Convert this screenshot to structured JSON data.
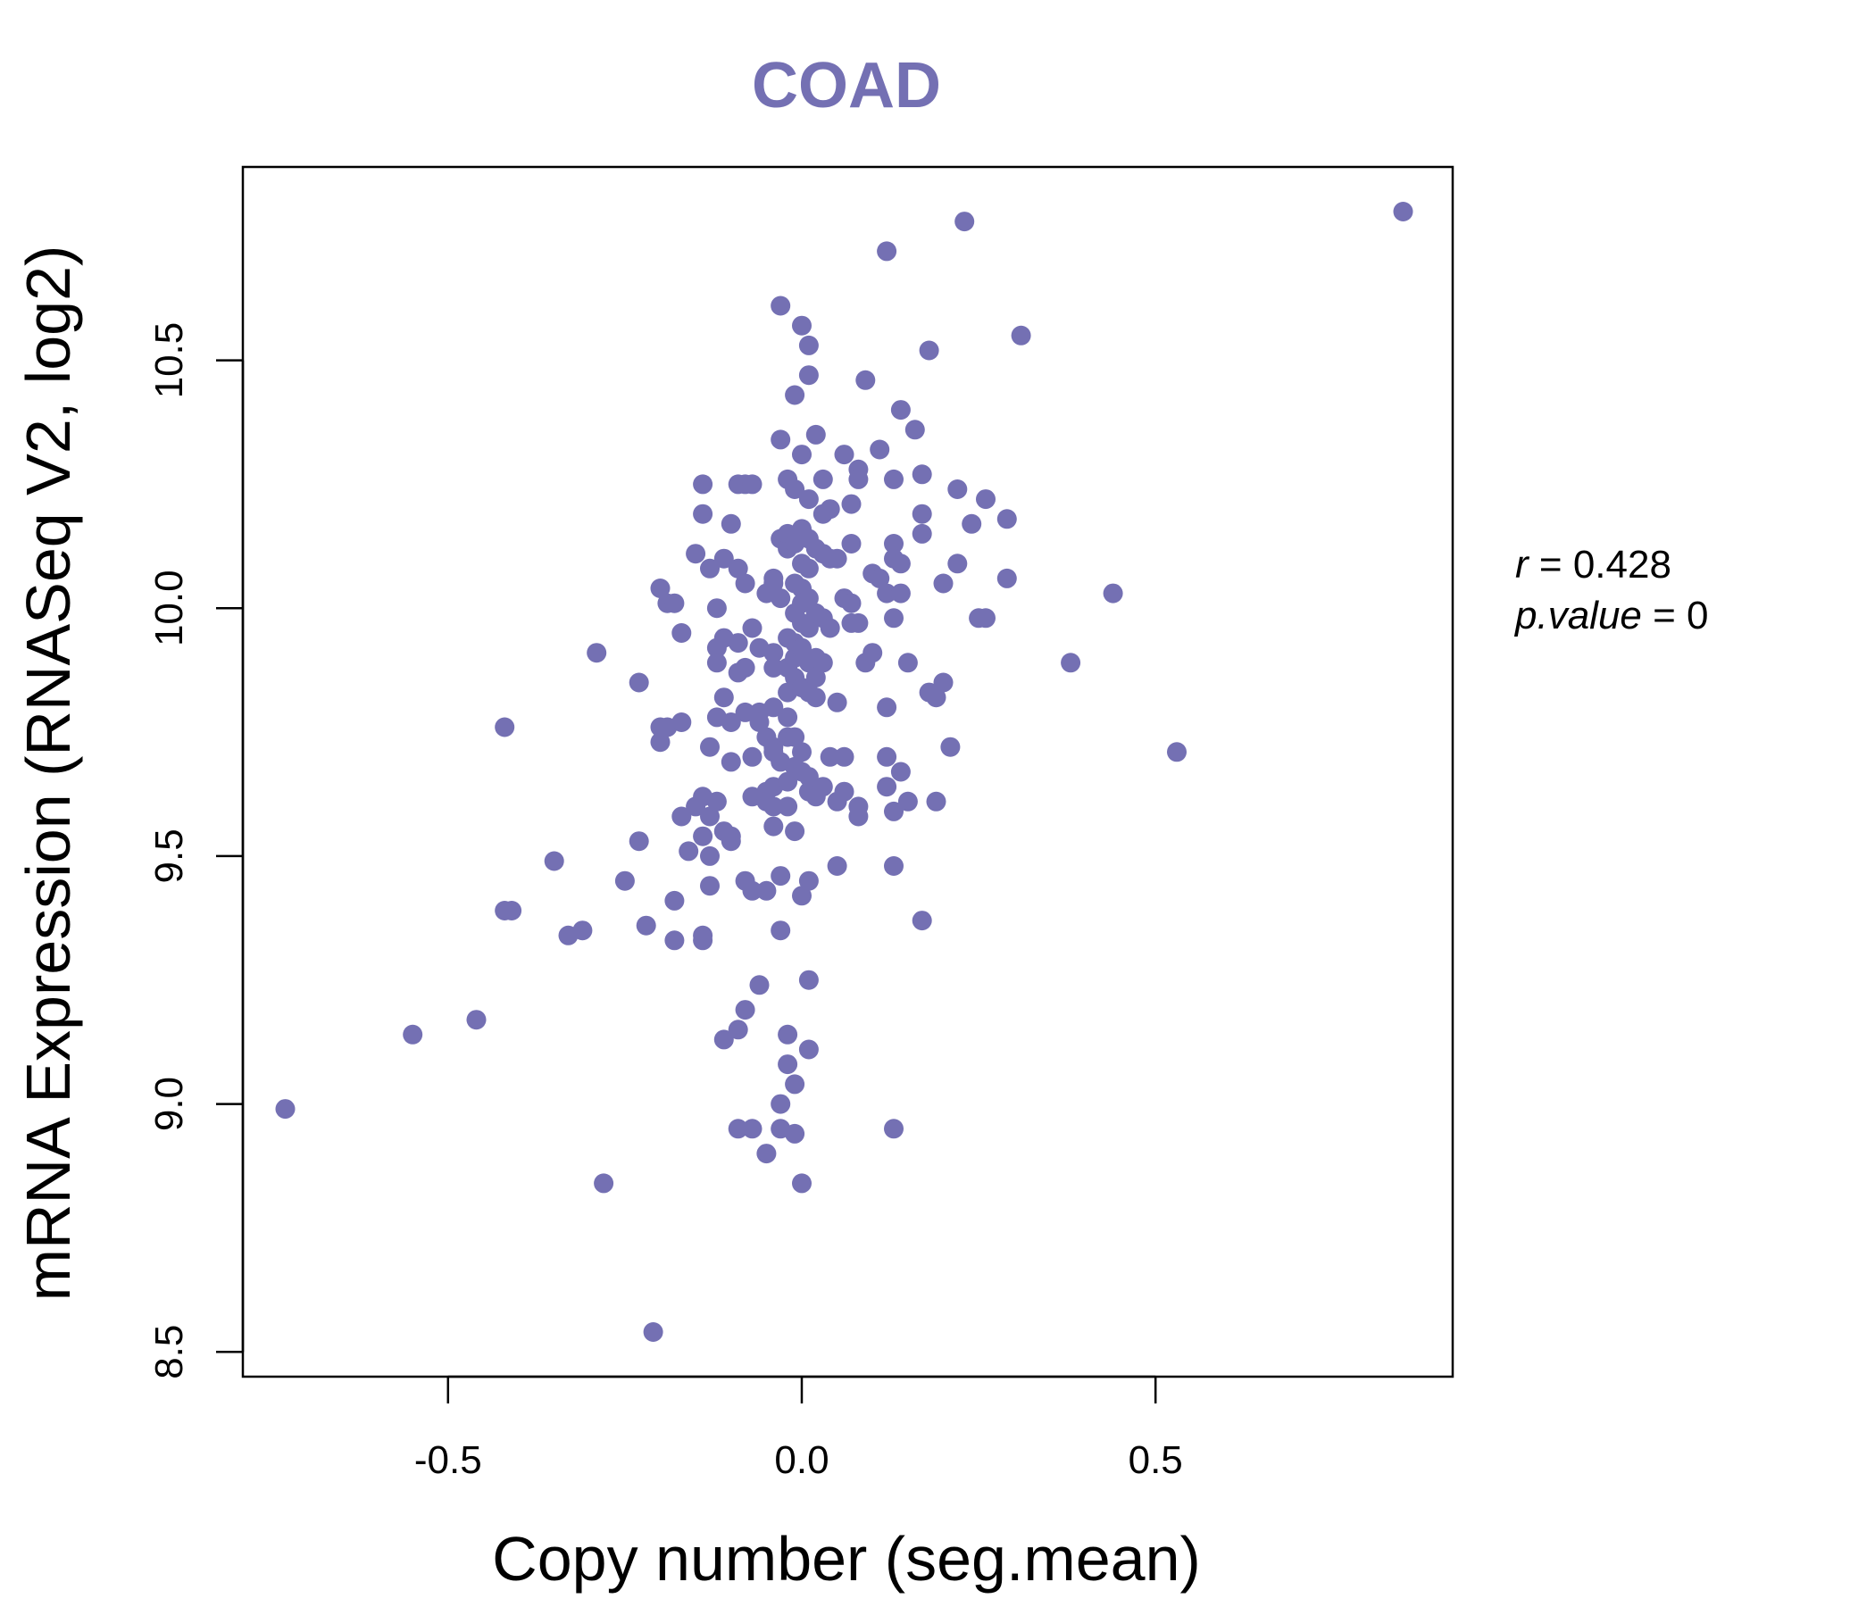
{
  "chart_data": {
    "type": "scatter",
    "title": "COAD",
    "xlabel": "Copy number (seg.mean)",
    "ylabel": "mRNA Expression (RNASeq V2, log2)",
    "xlim": [
      -0.79,
      0.92
    ],
    "ylim": [
      8.45,
      10.89
    ],
    "xticks": [
      -0.5,
      0.0,
      0.5
    ],
    "xtick_labels": [
      "-0.5",
      "0.0",
      "0.5"
    ],
    "yticks": [
      8.5,
      9.0,
      9.5,
      10.0,
      10.5
    ],
    "ytick_labels": [
      "8.5",
      "9.0",
      "9.5",
      "10.0",
      "10.5"
    ],
    "color": "#7470b3",
    "stats": {
      "r_label": "r",
      "r_value": "0.428",
      "p_label": "p.value",
      "p_value": "0"
    },
    "points": [
      [
        -0.73,
        8.99
      ],
      [
        -0.55,
        9.14
      ],
      [
        -0.46,
        9.17
      ],
      [
        -0.42,
        9.76
      ],
      [
        -0.42,
        9.39
      ],
      [
        -0.41,
        9.39
      ],
      [
        -0.35,
        9.49
      ],
      [
        -0.33,
        9.34
      ],
      [
        -0.31,
        9.35
      ],
      [
        -0.29,
        9.91
      ],
      [
        -0.28,
        8.84
      ],
      [
        -0.25,
        9.45
      ],
      [
        -0.23,
        9.53
      ],
      [
        -0.23,
        9.85
      ],
      [
        -0.22,
        9.36
      ],
      [
        -0.21,
        8.54
      ],
      [
        -0.2,
        10.04
      ],
      [
        -0.2,
        9.73
      ],
      [
        -0.2,
        9.76
      ],
      [
        -0.19,
        9.76
      ],
      [
        -0.19,
        10.01
      ],
      [
        -0.18,
        9.41
      ],
      [
        -0.18,
        10.01
      ],
      [
        -0.18,
        9.33
      ],
      [
        -0.17,
        9.77
      ],
      [
        -0.17,
        9.95
      ],
      [
        -0.17,
        9.58
      ],
      [
        -0.16,
        9.51
      ],
      [
        -0.15,
        10.11
      ],
      [
        -0.15,
        9.6
      ],
      [
        -0.14,
        10.25
      ],
      [
        -0.14,
        10.19
      ],
      [
        -0.14,
        9.62
      ],
      [
        -0.14,
        9.34
      ],
      [
        -0.14,
        9.33
      ],
      [
        -0.14,
        9.54
      ],
      [
        -0.13,
        10.08
      ],
      [
        -0.13,
        9.58
      ],
      [
        -0.13,
        9.5
      ],
      [
        -0.13,
        9.72
      ],
      [
        -0.13,
        9.44
      ],
      [
        -0.12,
        9.92
      ],
      [
        -0.12,
        9.89
      ],
      [
        -0.12,
        9.78
      ],
      [
        -0.12,
        10.0
      ],
      [
        -0.12,
        9.61
      ],
      [
        -0.11,
        9.13
      ],
      [
        -0.11,
        10.1
      ],
      [
        -0.11,
        9.82
      ],
      [
        -0.11,
        9.94
      ],
      [
        -0.11,
        9.55
      ],
      [
        -0.1,
        10.17
      ],
      [
        -0.1,
        9.77
      ],
      [
        -0.1,
        9.53
      ],
      [
        -0.1,
        9.54
      ],
      [
        -0.1,
        9.69
      ],
      [
        -0.09,
        10.08
      ],
      [
        -0.09,
        9.93
      ],
      [
        -0.09,
        9.15
      ],
      [
        -0.09,
        8.95
      ],
      [
        -0.09,
        10.25
      ],
      [
        -0.09,
        9.87
      ],
      [
        -0.08,
        9.45
      ],
      [
        -0.08,
        10.25
      ],
      [
        -0.08,
        10.05
      ],
      [
        -0.08,
        9.88
      ],
      [
        -0.08,
        9.79
      ],
      [
        -0.08,
        9.19
      ],
      [
        -0.07,
        10.25
      ],
      [
        -0.07,
        9.96
      ],
      [
        -0.07,
        9.7
      ],
      [
        -0.07,
        8.95
      ],
      [
        -0.07,
        9.43
      ],
      [
        -0.07,
        9.62
      ],
      [
        -0.06,
        9.24
      ],
      [
        -0.06,
        9.79
      ],
      [
        -0.06,
        9.77
      ],
      [
        -0.06,
        9.92
      ],
      [
        -0.05,
        10.03
      ],
      [
        -0.05,
        9.74
      ],
      [
        -0.05,
        9.43
      ],
      [
        -0.05,
        8.9
      ],
      [
        -0.05,
        9.63
      ],
      [
        -0.05,
        9.61
      ],
      [
        -0.04,
        10.05
      ],
      [
        -0.04,
        10.06
      ],
      [
        -0.04,
        9.91
      ],
      [
        -0.04,
        9.88
      ],
      [
        -0.04,
        9.8
      ],
      [
        -0.04,
        9.72
      ],
      [
        -0.04,
        9.71
      ],
      [
        -0.04,
        9.6
      ],
      [
        -0.04,
        9.56
      ],
      [
        -0.04,
        9.64
      ],
      [
        -0.03,
        10.61
      ],
      [
        -0.03,
        10.34
      ],
      [
        -0.03,
        10.14
      ],
      [
        -0.03,
        10.02
      ],
      [
        -0.03,
        9.46
      ],
      [
        -0.03,
        9.35
      ],
      [
        -0.03,
        9.0
      ],
      [
        -0.03,
        8.95
      ],
      [
        -0.03,
        9.69
      ],
      [
        -0.02,
        10.26
      ],
      [
        -0.02,
        10.12
      ],
      [
        -0.02,
        10.15
      ],
      [
        -0.02,
        9.94
      ],
      [
        -0.02,
        9.88
      ],
      [
        -0.02,
        9.83
      ],
      [
        -0.02,
        9.78
      ],
      [
        -0.02,
        9.74
      ],
      [
        -0.02,
        9.6
      ],
      [
        -0.02,
        9.65
      ],
      [
        -0.02,
        9.14
      ],
      [
        -0.02,
        9.08
      ],
      [
        -0.01,
        10.43
      ],
      [
        -0.01,
        10.24
      ],
      [
        -0.01,
        10.13
      ],
      [
        -0.01,
        10.05
      ],
      [
        -0.01,
        9.99
      ],
      [
        -0.01,
        9.93
      ],
      [
        -0.01,
        9.9
      ],
      [
        -0.01,
        9.86
      ],
      [
        -0.01,
        9.74
      ],
      [
        -0.01,
        9.68
      ],
      [
        -0.01,
        9.55
      ],
      [
        -0.01,
        9.04
      ],
      [
        -0.01,
        8.94
      ],
      [
        0.0,
        10.57
      ],
      [
        0.0,
        10.31
      ],
      [
        0.0,
        10.16
      ],
      [
        0.0,
        10.09
      ],
      [
        0.0,
        10.04
      ],
      [
        0.0,
        10.01
      ],
      [
        0.0,
        9.97
      ],
      [
        0.0,
        9.92
      ],
      [
        0.0,
        9.84
      ],
      [
        0.0,
        9.71
      ],
      [
        0.0,
        9.67
      ],
      [
        0.0,
        9.42
      ],
      [
        0.0,
        8.84
      ],
      [
        0.01,
        10.53
      ],
      [
        0.01,
        10.47
      ],
      [
        0.01,
        10.22
      ],
      [
        0.01,
        10.14
      ],
      [
        0.01,
        10.08
      ],
      [
        0.01,
        10.02
      ],
      [
        0.01,
        9.96
      ],
      [
        0.01,
        9.89
      ],
      [
        0.01,
        9.83
      ],
      [
        0.01,
        9.66
      ],
      [
        0.01,
        9.63
      ],
      [
        0.01,
        9.45
      ],
      [
        0.01,
        9.25
      ],
      [
        0.01,
        9.11
      ],
      [
        0.02,
        10.35
      ],
      [
        0.02,
        10.12
      ],
      [
        0.02,
        9.99
      ],
      [
        0.02,
        9.9
      ],
      [
        0.02,
        9.86
      ],
      [
        0.02,
        9.82
      ],
      [
        0.02,
        9.62
      ],
      [
        0.03,
        10.26
      ],
      [
        0.03,
        10.19
      ],
      [
        0.03,
        10.11
      ],
      [
        0.03,
        9.98
      ],
      [
        0.03,
        9.89
      ],
      [
        0.03,
        9.64
      ],
      [
        0.04,
        10.2
      ],
      [
        0.04,
        10.1
      ],
      [
        0.04,
        9.96
      ],
      [
        0.04,
        9.7
      ],
      [
        0.05,
        10.1
      ],
      [
        0.05,
        9.81
      ],
      [
        0.05,
        9.48
      ],
      [
        0.05,
        9.61
      ],
      [
        0.06,
        10.31
      ],
      [
        0.06,
        10.02
      ],
      [
        0.06,
        9.7
      ],
      [
        0.06,
        9.63
      ],
      [
        0.07,
        10.21
      ],
      [
        0.07,
        10.13
      ],
      [
        0.07,
        10.01
      ],
      [
        0.07,
        9.97
      ],
      [
        0.08,
        10.28
      ],
      [
        0.08,
        10.26
      ],
      [
        0.08,
        9.97
      ],
      [
        0.08,
        9.58
      ],
      [
        0.08,
        9.6
      ],
      [
        0.09,
        10.46
      ],
      [
        0.09,
        9.89
      ],
      [
        0.1,
        10.07
      ],
      [
        0.1,
        9.91
      ],
      [
        0.11,
        10.32
      ],
      [
        0.11,
        10.06
      ],
      [
        0.12,
        10.03
      ],
      [
        0.12,
        10.72
      ],
      [
        0.12,
        9.8
      ],
      [
        0.12,
        9.7
      ],
      [
        0.12,
        9.64
      ],
      [
        0.13,
        10.26
      ],
      [
        0.13,
        10.13
      ],
      [
        0.13,
        10.1
      ],
      [
        0.13,
        9.98
      ],
      [
        0.13,
        9.59
      ],
      [
        0.13,
        9.48
      ],
      [
        0.13,
        8.95
      ],
      [
        0.14,
        10.4
      ],
      [
        0.14,
        10.09
      ],
      [
        0.14,
        10.03
      ],
      [
        0.14,
        9.67
      ],
      [
        0.15,
        9.89
      ],
      [
        0.15,
        9.61
      ],
      [
        0.16,
        10.36
      ],
      [
        0.17,
        10.27
      ],
      [
        0.17,
        10.19
      ],
      [
        0.17,
        10.15
      ],
      [
        0.17,
        9.37
      ],
      [
        0.18,
        9.83
      ],
      [
        0.18,
        10.52
      ],
      [
        0.19,
        9.82
      ],
      [
        0.19,
        9.61
      ],
      [
        0.2,
        10.05
      ],
      [
        0.2,
        9.85
      ],
      [
        0.21,
        9.72
      ],
      [
        0.22,
        10.24
      ],
      [
        0.22,
        10.09
      ],
      [
        0.23,
        10.78
      ],
      [
        0.24,
        10.17
      ],
      [
        0.25,
        9.98
      ],
      [
        0.26,
        10.22
      ],
      [
        0.26,
        9.98
      ],
      [
        0.29,
        10.18
      ],
      [
        0.29,
        10.06
      ],
      [
        0.31,
        10.55
      ],
      [
        0.38,
        9.89
      ],
      [
        0.44,
        10.03
      ],
      [
        0.53,
        9.71
      ],
      [
        0.85,
        10.8
      ]
    ]
  }
}
